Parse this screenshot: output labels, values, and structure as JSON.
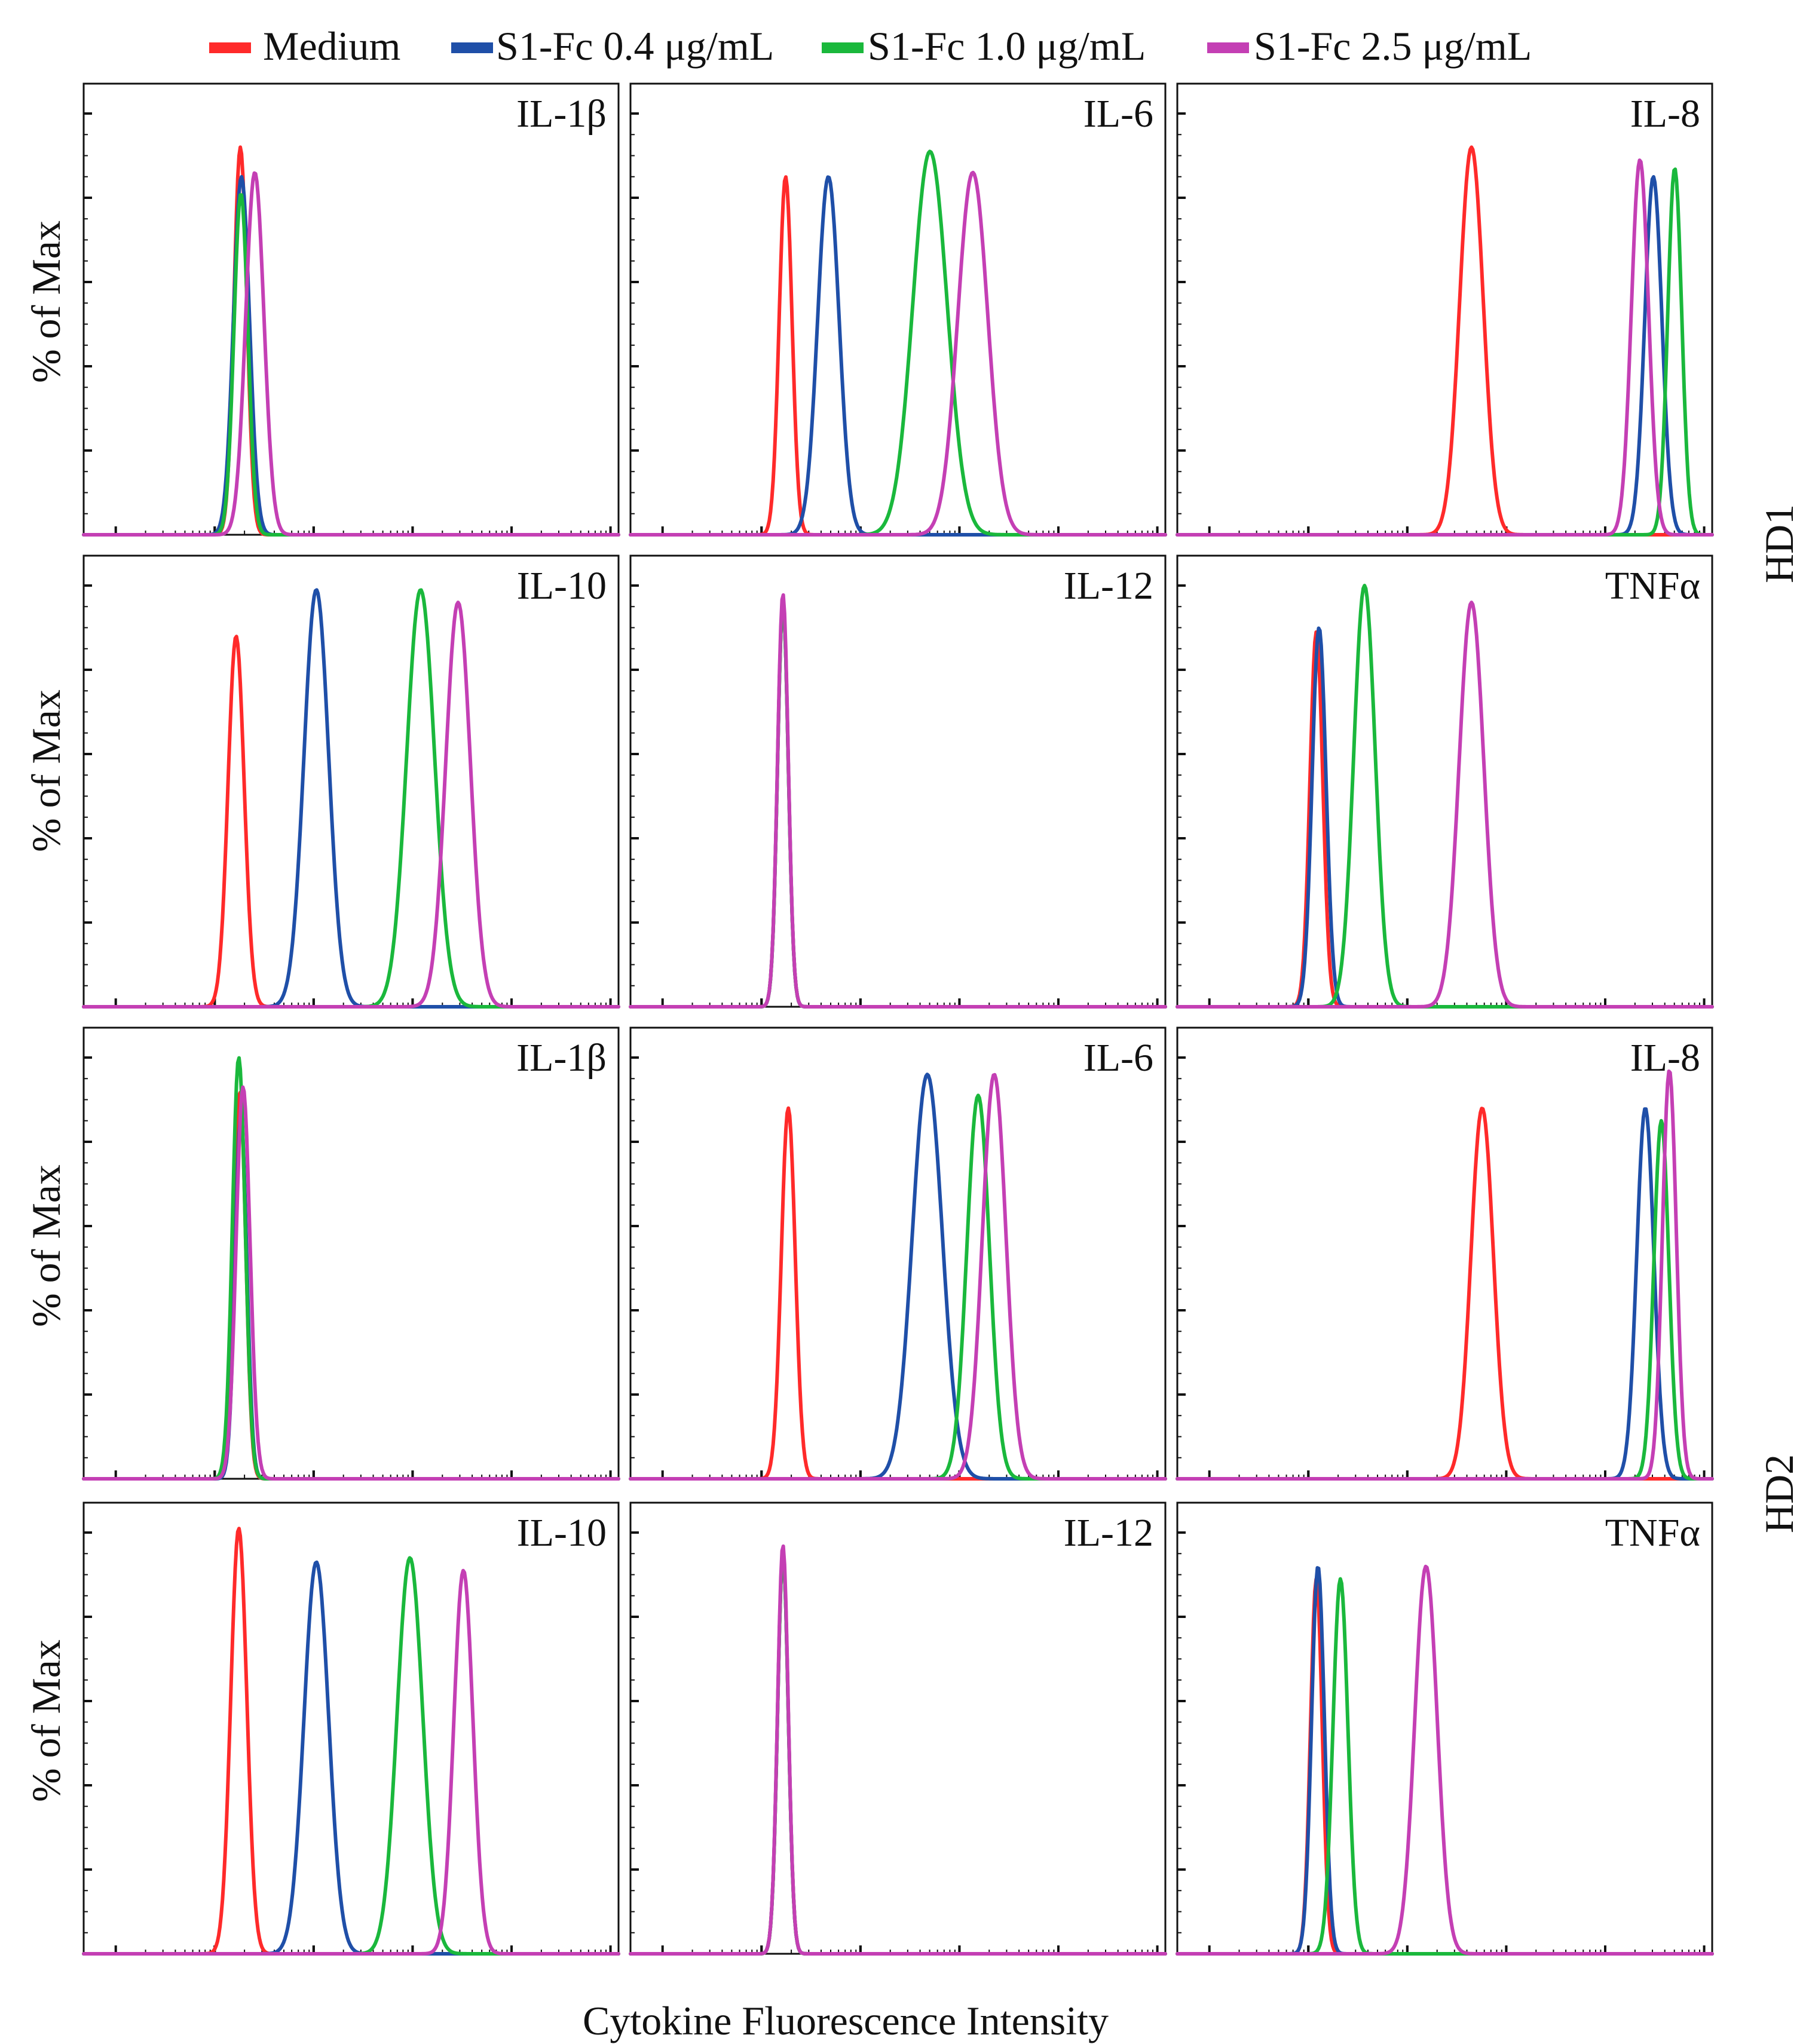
{
  "figure": {
    "xlabel": "Cytokine Fluorescence Intensity",
    "ylabel": "% of Max",
    "row_groups": [
      {
        "label": "HD1",
        "rows": [
          0,
          1
        ]
      },
      {
        "label": "HD2",
        "rows": [
          2,
          3
        ]
      }
    ]
  },
  "legend": {
    "entries": [
      {
        "key": "medium",
        "label": "Medium",
        "color": "#ff2a2a"
      },
      {
        "key": "s1_04",
        "label": "S1-Fc 0.4 μg/mL",
        "color": "#1f4fa8"
      },
      {
        "key": "s1_10",
        "label": "S1-Fc 1.0 μg/mL",
        "color": "#1ab83c"
      },
      {
        "key": "s1_25",
        "label": "S1-Fc 2.5 μg/mL",
        "color": "#c43fb4"
      }
    ]
  },
  "chart_data": [
    {
      "type": "line",
      "panel": "HD1 IL-1β",
      "donor": "HD1",
      "title": "IL-1β",
      "xscale": "log",
      "xlim": [
        0,
        100
      ],
      "ylim": [
        0,
        100
      ],
      "series": [
        {
          "name": "Medium",
          "peak_position": 29.3,
          "peak_height": 92,
          "width": 1.2
        },
        {
          "name": "S1-Fc 0.4 μg/mL",
          "peak_position": 29.5,
          "peak_height": 85,
          "width": 1.5
        },
        {
          "name": "S1-Fc 1.0 μg/mL",
          "peak_position": 29.4,
          "peak_height": 81,
          "width": 1.3
        },
        {
          "name": "S1-Fc 2.5 μg/mL",
          "peak_position": 32.0,
          "peak_height": 86,
          "width": 1.7
        }
      ]
    },
    {
      "type": "line",
      "panel": "HD1 IL-6",
      "donor": "HD1",
      "title": "IL-6",
      "xscale": "log",
      "xlim": [
        0,
        100
      ],
      "ylim": [
        0,
        100
      ],
      "series": [
        {
          "name": "Medium",
          "peak_position": 29.0,
          "peak_height": 85,
          "width": 1.2
        },
        {
          "name": "S1-Fc 0.4 μg/mL",
          "peak_position": 37.0,
          "peak_height": 85,
          "width": 2.0
        },
        {
          "name": "S1-Fc 1.0 μg/mL",
          "peak_position": 56.0,
          "peak_height": 91,
          "width": 3.2
        },
        {
          "name": "S1-Fc 2.5 μg/mL",
          "peak_position": 64.0,
          "peak_height": 86,
          "width": 2.8
        }
      ]
    },
    {
      "type": "line",
      "panel": "HD1 IL-8",
      "donor": "HD1",
      "title": "IL-8",
      "xscale": "log",
      "xlim": [
        0,
        100
      ],
      "ylim": [
        0,
        100
      ],
      "series": [
        {
          "name": "Medium",
          "peak_position": 55.0,
          "peak_height": 92,
          "width": 2.2
        },
        {
          "name": "S1-Fc 0.4 μg/mL",
          "peak_position": 89.0,
          "peak_height": 85,
          "width": 1.6
        },
        {
          "name": "S1-Fc 1.0 μg/mL",
          "peak_position": 93.0,
          "peak_height": 87,
          "width": 1.3
        },
        {
          "name": "S1-Fc 2.5 μg/mL",
          "peak_position": 86.5,
          "peak_height": 89,
          "width": 1.6
        }
      ]
    },
    {
      "type": "line",
      "panel": "HD1 IL-10",
      "donor": "HD1",
      "title": "IL-10",
      "xscale": "log",
      "xlim": [
        0,
        100
      ],
      "ylim": [
        0,
        100
      ],
      "series": [
        {
          "name": "Medium",
          "peak_position": 28.5,
          "peak_height": 88,
          "width": 1.5
        },
        {
          "name": "S1-Fc 0.4 μg/mL",
          "peak_position": 43.5,
          "peak_height": 99,
          "width": 2.3
        },
        {
          "name": "S1-Fc 1.0 μg/mL",
          "peak_position": 63.0,
          "peak_height": 99,
          "width": 2.6
        },
        {
          "name": "S1-Fc 2.5 μg/mL",
          "peak_position": 70.0,
          "peak_height": 96,
          "width": 2.3
        }
      ]
    },
    {
      "type": "line",
      "panel": "HD1 IL-12",
      "donor": "HD1",
      "title": "IL-12",
      "xscale": "log",
      "xlim": [
        0,
        100
      ],
      "ylim": [
        0,
        100
      ],
      "series": [
        {
          "name": "Medium",
          "peak_position": 28.5,
          "peak_height": 96,
          "width": 1.0
        },
        {
          "name": "S1-Fc 0.4 μg/mL",
          "peak_position": 28.5,
          "peak_height": 96,
          "width": 1.0
        },
        {
          "name": "S1-Fc 1.0 μg/mL",
          "peak_position": 28.5,
          "peak_height": 96,
          "width": 1.0
        },
        {
          "name": "S1-Fc 2.5 μg/mL",
          "peak_position": 28.5,
          "peak_height": 98,
          "width": 1.0
        }
      ]
    },
    {
      "type": "line",
      "panel": "HD1 TNFα",
      "donor": "HD1",
      "title": "TNFα",
      "xscale": "log",
      "xlim": [
        0,
        100
      ],
      "ylim": [
        0,
        100
      ],
      "series": [
        {
          "name": "Medium",
          "peak_position": 26.0,
          "peak_height": 89,
          "width": 1.2
        },
        {
          "name": "S1-Fc 0.4 μg/mL",
          "peak_position": 26.5,
          "peak_height": 90,
          "width": 1.3
        },
        {
          "name": "S1-Fc 1.0 μg/mL",
          "peak_position": 35.0,
          "peak_height": 100,
          "width": 2.0
        },
        {
          "name": "S1-Fc 2.5 μg/mL",
          "peak_position": 55.0,
          "peak_height": 96,
          "width": 2.3
        }
      ]
    },
    {
      "type": "line",
      "panel": "HD2 IL-1β",
      "donor": "HD2",
      "title": "IL-1β",
      "xscale": "log",
      "xlim": [
        0,
        100
      ],
      "ylim": [
        0,
        100
      ],
      "series": [
        {
          "name": "Medium",
          "peak_position": 29.2,
          "peak_height": 92,
          "width": 1.1
        },
        {
          "name": "S1-Fc 0.4 μg/mL",
          "peak_position": 29.4,
          "peak_height": 86,
          "width": 1.1
        },
        {
          "name": "S1-Fc 1.0 μg/mL",
          "peak_position": 29.0,
          "peak_height": 100,
          "width": 1.2
        },
        {
          "name": "S1-Fc 2.5 μg/mL",
          "peak_position": 29.8,
          "peak_height": 93,
          "width": 1.3
        }
      ]
    },
    {
      "type": "line",
      "panel": "HD2 IL-6",
      "donor": "HD2",
      "title": "IL-6",
      "xscale": "log",
      "xlim": [
        0,
        100
      ],
      "ylim": [
        0,
        100
      ],
      "series": [
        {
          "name": "Medium",
          "peak_position": 29.5,
          "peak_height": 88,
          "width": 1.3
        },
        {
          "name": "S1-Fc 0.4 μg/mL",
          "peak_position": 55.5,
          "peak_height": 96,
          "width": 2.8
        },
        {
          "name": "S1-Fc 1.0 μg/mL",
          "peak_position": 65.0,
          "peak_height": 91,
          "width": 2.1
        },
        {
          "name": "S1-Fc 2.5 μg/mL",
          "peak_position": 68.0,
          "peak_height": 96,
          "width": 2.2
        }
      ]
    },
    {
      "type": "line",
      "panel": "HD2 IL-8",
      "donor": "HD2",
      "title": "IL-8",
      "xscale": "log",
      "xlim": [
        0,
        100
      ],
      "ylim": [
        0,
        100
      ],
      "series": [
        {
          "name": "Medium",
          "peak_position": 57.0,
          "peak_height": 88,
          "width": 2.1
        },
        {
          "name": "S1-Fc 0.4 μg/mL",
          "peak_position": 87.5,
          "peak_height": 88,
          "width": 1.6
        },
        {
          "name": "S1-Fc 1.0 μg/mL",
          "peak_position": 90.5,
          "peak_height": 85,
          "width": 1.4
        },
        {
          "name": "S1-Fc 2.5 μg/mL",
          "peak_position": 92.0,
          "peak_height": 97,
          "width": 1.3
        }
      ]
    },
    {
      "type": "line",
      "panel": "HD2 IL-10",
      "donor": "HD2",
      "title": "IL-10",
      "xscale": "log",
      "xlim": [
        0,
        100
      ],
      "ylim": [
        0,
        100
      ],
      "series": [
        {
          "name": "Medium",
          "peak_position": 29.0,
          "peak_height": 101,
          "width": 1.5
        },
        {
          "name": "S1-Fc 0.4 μg/mL",
          "peak_position": 43.5,
          "peak_height": 93,
          "width": 2.3
        },
        {
          "name": "S1-Fc 1.0 μg/mL",
          "peak_position": 61.0,
          "peak_height": 94,
          "width": 2.4
        },
        {
          "name": "S1-Fc 2.5 μg/mL",
          "peak_position": 71.0,
          "peak_height": 91,
          "width": 1.8
        }
      ]
    },
    {
      "type": "line",
      "panel": "HD2 IL-12",
      "donor": "HD2",
      "title": "IL-12",
      "xscale": "log",
      "xlim": [
        0,
        100
      ],
      "ylim": [
        0,
        100
      ],
      "series": [
        {
          "name": "Medium",
          "peak_position": 28.5,
          "peak_height": 95,
          "width": 1.0
        },
        {
          "name": "S1-Fc 0.4 μg/mL",
          "peak_position": 28.5,
          "peak_height": 95,
          "width": 1.0
        },
        {
          "name": "S1-Fc 1.0 μg/mL",
          "peak_position": 28.5,
          "peak_height": 95,
          "width": 1.0
        },
        {
          "name": "S1-Fc 2.5 μg/mL",
          "peak_position": 28.5,
          "peak_height": 97,
          "width": 1.0
        }
      ]
    },
    {
      "type": "line",
      "panel": "HD2 TNFα",
      "donor": "HD2",
      "title": "TNFα",
      "xscale": "log",
      "xlim": [
        0,
        100
      ],
      "ylim": [
        0,
        100
      ],
      "series": [
        {
          "name": "Medium",
          "peak_position": 26.0,
          "peak_height": 89,
          "width": 1.1
        },
        {
          "name": "S1-Fc 0.4 μg/mL",
          "peak_position": 26.3,
          "peak_height": 92,
          "width": 1.2
        },
        {
          "name": "S1-Fc 1.0 μg/mL",
          "peak_position": 30.5,
          "peak_height": 89,
          "width": 1.4
        },
        {
          "name": "S1-Fc 2.5 μg/mL",
          "peak_position": 46.5,
          "peak_height": 92,
          "width": 2.1
        }
      ]
    }
  ]
}
